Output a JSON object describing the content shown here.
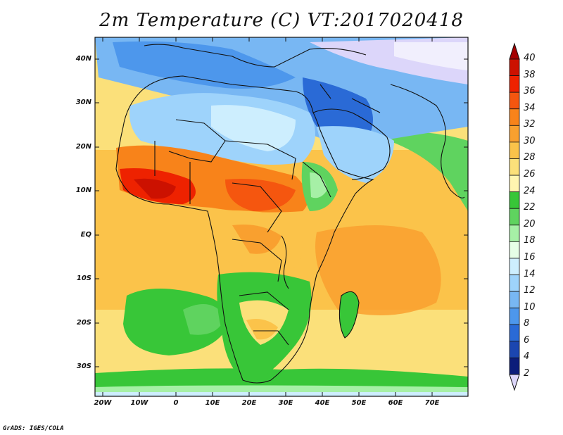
{
  "title": "2m Temperature (C) VT:2017020418",
  "credit": "GrADS: IGES/COLA",
  "axes": {
    "y_labels": [
      "40N",
      "30N",
      "20N",
      "10N",
      "EQ",
      "10S",
      "20S",
      "30S"
    ],
    "x_labels": [
      "20W",
      "10W",
      "0",
      "10E",
      "20E",
      "30E",
      "40E",
      "50E",
      "60E",
      "70E"
    ]
  },
  "colorbar": {
    "labels": [
      "40",
      "38",
      "36",
      "34",
      "32",
      "30",
      "28",
      "26",
      "24",
      "22",
      "20",
      "18",
      "16",
      "14",
      "12",
      "10",
      "8",
      "6",
      "4",
      "2"
    ],
    "colors": [
      "#a50000",
      "#cc1100",
      "#ee2200",
      "#f5560f",
      "#f8831a",
      "#f9a02f",
      "#fbc34a",
      "#fbe07a",
      "#fff5b0",
      "#38c638",
      "#5fd35f",
      "#a6f0a6",
      "#e6ffe6",
      "#cdeefe",
      "#9ed3fb",
      "#78b7f3",
      "#4d97ec",
      "#2a6ad6",
      "#1b46b0",
      "#0c1d7a",
      "#dcd6fa"
    ]
  },
  "map_data": {
    "region": "Africa and Middle East",
    "lon_range": [
      -22,
      80
    ],
    "lat_range": [
      -36,
      46
    ],
    "variable": "2m Temperature",
    "units": "C"
  }
}
